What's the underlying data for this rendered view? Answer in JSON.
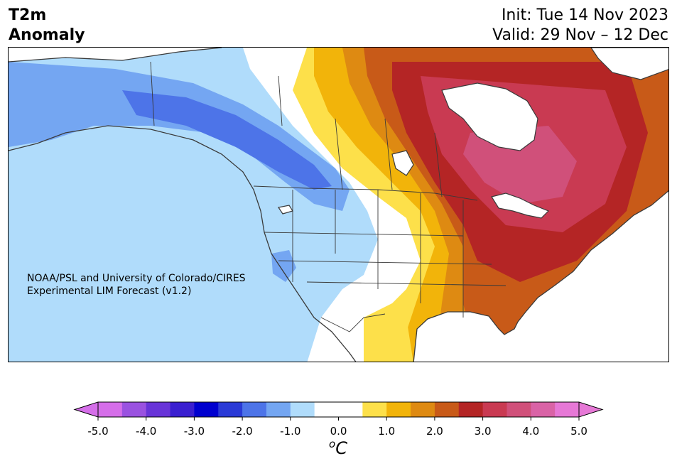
{
  "header": {
    "title_line1": "T2m",
    "title_line2": "Anomaly",
    "init": "Init: Tue 14 Nov 2023",
    "valid": "Valid: 29 Nov – 12 Dec"
  },
  "map": {
    "credit_line1": "NOAA/PSL and University of Colorado/CIRES",
    "credit_line2": "Experimental LIM Forecast (v1.2)",
    "regions": {
      "cold_west": "Alaska / western Canada / western US: -1.0 to -2.5 °C",
      "neutral_plains": "Great Plains / central Canada: near 0.0 °C",
      "warm_east": "Eastern Canada / eastern US: +1.0 to +4.5 °C",
      "peak_warm": "Quebec / Ontario core: +4.0 to +4.5 °C"
    }
  },
  "colorbar": {
    "unit_base": "C",
    "unit_sup": "o",
    "ticks": [
      "-5.0",
      "-4.0",
      "-3.0",
      "-2.0",
      "-1.0",
      "0.0",
      "1.0",
      "2.0",
      "3.0",
      "4.0",
      "5.0"
    ],
    "min": -5.0,
    "max": 5.0,
    "step": 0.5,
    "colors": [
      "#d56ee9",
      "#9a52e0",
      "#6834d8",
      "#3a1fd0",
      "#0000cf",
      "#2a3ad6",
      "#4d74e8",
      "#74a6f2",
      "#b0dcfb",
      "#ffffff",
      "#ffffff",
      "#fde04a",
      "#f2b40a",
      "#de8a12",
      "#c85a18",
      "#b42525",
      "#c93a52",
      "#d0507a",
      "#d963a6",
      "#e678d6"
    ],
    "extend_low": "#d56ee9",
    "extend_high": "#e678d6"
  },
  "palette": {
    "land_outline": "#3a3a3a",
    "water": "#ffffff"
  }
}
